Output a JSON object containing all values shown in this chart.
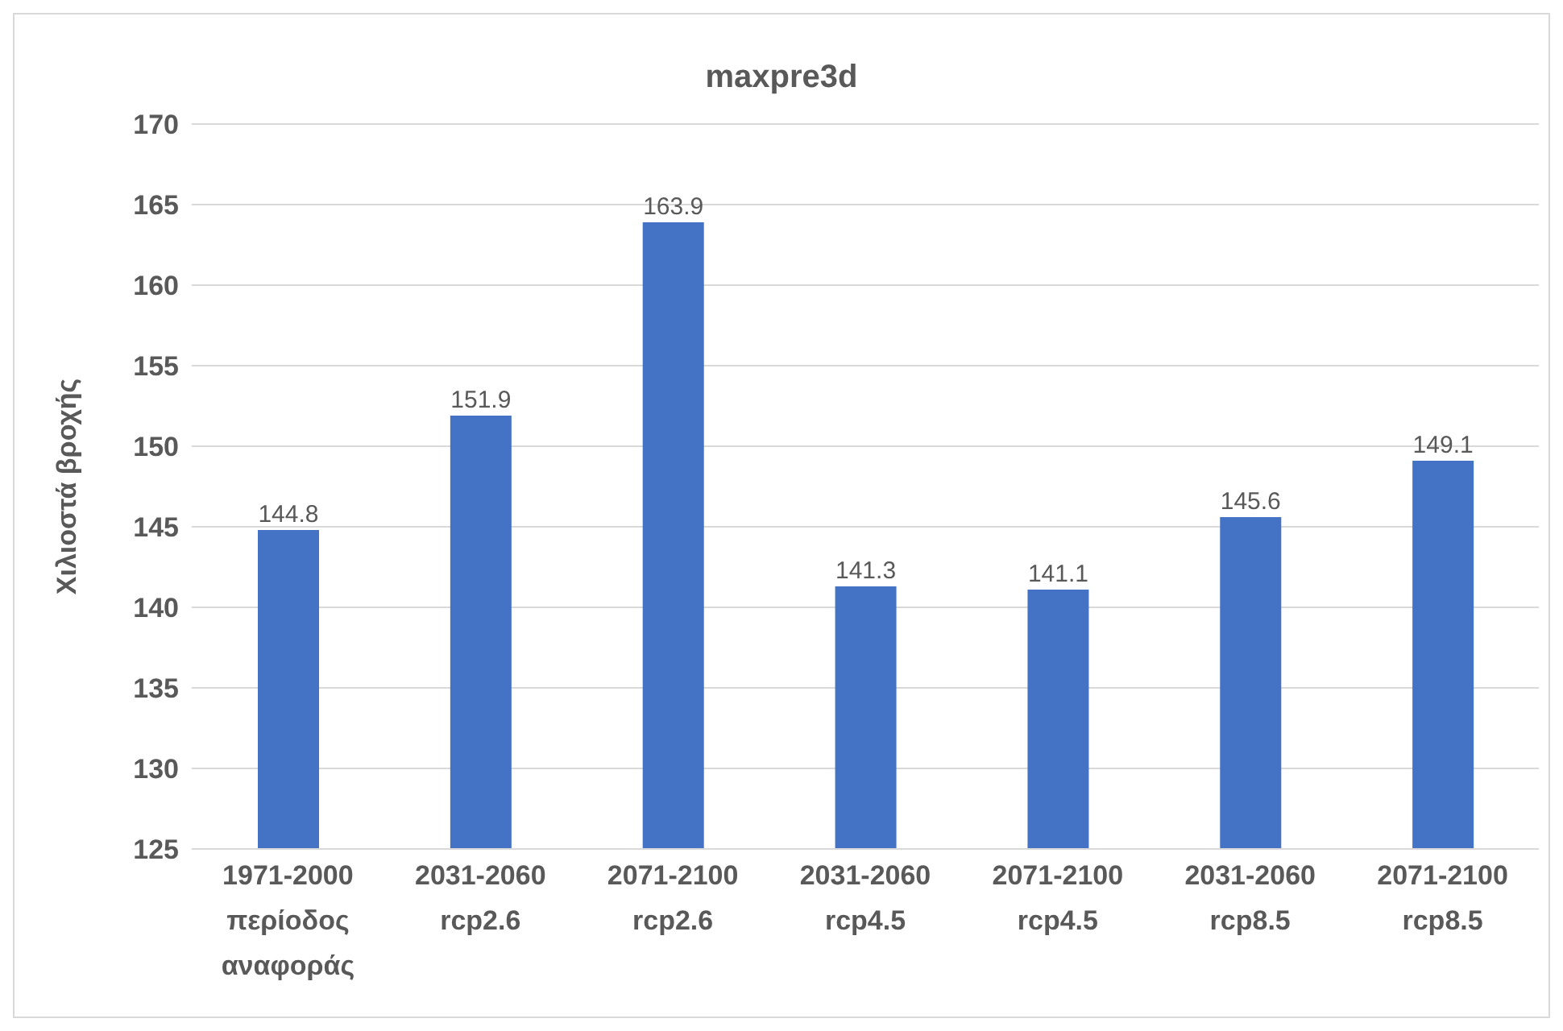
{
  "chart_data": {
    "type": "bar",
    "title": "maxpre3d",
    "ylabel": "Χιλιοστά βροχής",
    "categories": [
      "1971-2000 περίοδος αναφοράς",
      "2031-2060 rcp2.6",
      "2071-2100 rcp2.6",
      "2031-2060 rcp4.5",
      "2071-2100 rcp4.5",
      "2031-2060 rcp8.5",
      "2071-2100 rcp8.5"
    ],
    "values": [
      144.8,
      151.9,
      163.9,
      141.3,
      141.1,
      145.6,
      149.1
    ],
    "color": "#4472c4",
    "ylim": [
      125,
      170
    ],
    "yticks": [
      125,
      130,
      135,
      140,
      145,
      150,
      155,
      160,
      165,
      170
    ],
    "grid": "y",
    "data_labels": true
  }
}
